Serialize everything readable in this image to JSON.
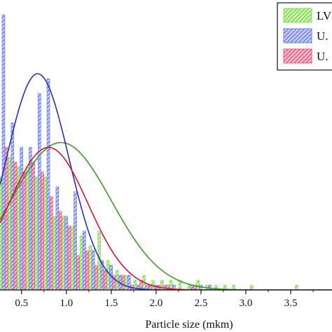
{
  "chart_data": {
    "type": "bar",
    "xlabel": "Particle size (mkm)",
    "ylabel": "",
    "title": "",
    "x_ticks": [
      "0.5",
      "1.0",
      "1.5",
      "2.0",
      "2.5",
      "3.0",
      "3.5"
    ],
    "x_tick_values": [
      0.5,
      1.0,
      1.5,
      2.0,
      2.5,
      3.0,
      3.5
    ],
    "xlim": [
      0.26,
      3.96
    ],
    "ylim": [
      0,
      29.5
    ],
    "bin_width": 0.1,
    "legend_position": "top-right",
    "series": [
      {
        "name": "LV",
        "color": "#86e05a",
        "x": [
          0.3,
          0.4,
          0.5,
          0.6,
          0.7,
          0.8,
          0.9,
          1.0,
          1.1,
          1.2,
          1.3,
          1.4,
          1.5,
          1.6,
          1.7,
          1.8,
          1.9,
          2.0,
          2.1,
          2.2,
          2.3,
          2.4,
          2.5,
          2.6,
          2.7,
          2.8,
          2.9,
          3.0,
          3.1,
          3.2,
          3.3,
          3.4,
          3.5,
          3.6
        ],
        "values": [
          11.5,
          13.5,
          12.5,
          12.5,
          11.5,
          11.5,
          7.5,
          7.5,
          6.5,
          5.5,
          4.5,
          6.0,
          3.0,
          2.0,
          1.5,
          1.0,
          1.5,
          1.0,
          1.0,
          1.0,
          1.0,
          0.5,
          1.0,
          0.5,
          0.5,
          0.5,
          0.5,
          0.0,
          0.5,
          0.0,
          0.0,
          0.0,
          0.0,
          0.5
        ]
      },
      {
        "name": "U.",
        "color": "#6a7cf0",
        "x": [
          0.3,
          0.4,
          0.5,
          0.6,
          0.7,
          0.8,
          0.9,
          1.0,
          1.1,
          1.2,
          1.3,
          1.4,
          1.5,
          1.6,
          1.7,
          1.8,
          1.9,
          2.0,
          2.1,
          2.2,
          2.3,
          2.4,
          2.5,
          2.6,
          2.7,
          2.8,
          2.9,
          3.0,
          3.1,
          3.2
        ],
        "values": [
          28.0,
          17.0,
          14.5,
          14.5,
          20.0,
          21.5,
          10.5,
          7.5,
          10.0,
          6.0,
          4.0,
          3.0,
          2.5,
          1.5,
          1.5,
          0.5,
          0.5,
          0.5,
          0.5,
          0.5,
          0.0,
          0.5,
          0.5,
          0.5,
          0.0,
          0.0,
          0.0,
          0.0,
          0.0,
          0.0
        ]
      },
      {
        "name": "U.",
        "color": "#f0557a",
        "x": [
          0.3,
          0.4,
          0.5,
          0.6,
          0.7,
          0.8,
          0.9,
          1.0,
          1.1,
          1.2,
          1.3,
          1.4,
          1.5,
          1.6,
          1.7,
          1.8,
          1.9,
          2.0,
          2.1,
          2.2,
          2.3,
          2.4,
          2.5,
          2.6,
          2.7,
          2.8,
          2.9,
          3.0,
          3.1,
          3.2
        ],
        "values": [
          14.5,
          13.0,
          12.0,
          13.0,
          12.0,
          9.5,
          8.0,
          6.5,
          3.5,
          4.0,
          2.5,
          2.0,
          1.5,
          1.5,
          0.5,
          1.0,
          0.5,
          0.5,
          0.5,
          0.0,
          0.0,
          0.5,
          0.0,
          0.0,
          0.0,
          0.0,
          0.0,
          0.0,
          0.0,
          0.0
        ]
      }
    ],
    "fits": [
      {
        "color": "#3a9a22",
        "mu": 0.94,
        "sigma": 0.56,
        "peak": 15.0
      },
      {
        "color": "#2233bb",
        "mu": 0.68,
        "sigma": 0.35,
        "peak": 22.0
      },
      {
        "color": "#dd1133",
        "mu": 0.8,
        "sigma": 0.44,
        "peak": 14.5
      }
    ]
  }
}
